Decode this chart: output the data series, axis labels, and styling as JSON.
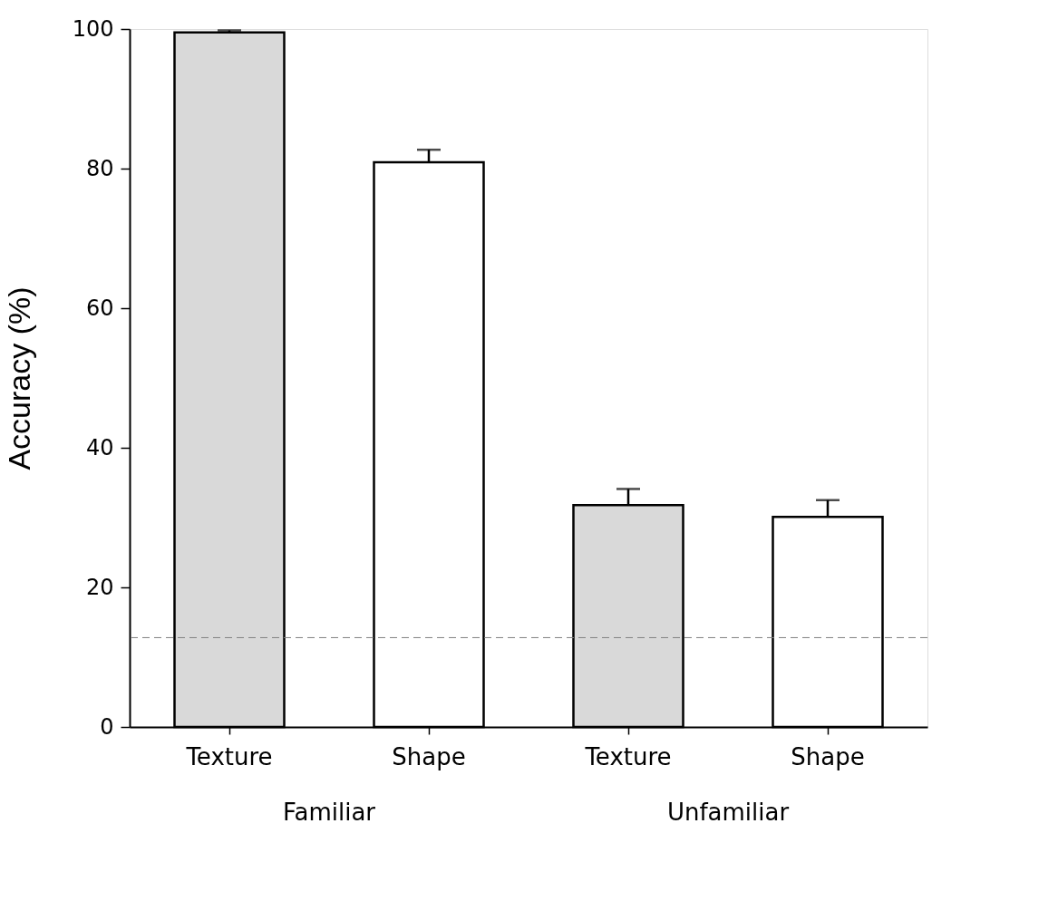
{
  "chart_data": {
    "type": "bar",
    "ylabel": "Accuracy (%)",
    "categories": [
      "Texture",
      "Shape",
      "Texture",
      "Shape"
    ],
    "values": [
      99.5,
      80.9,
      31.8,
      30.1
    ],
    "colors": [
      "#d9d9d9",
      "#ffffff",
      "#d9d9d9",
      "#ffffff"
    ],
    "errors": [
      [
        99.5,
        99.8
      ],
      [
        80.9,
        82.7
      ],
      [
        31.8,
        34.1
      ],
      [
        30.1,
        32.5
      ]
    ],
    "ylim": [
      0,
      100
    ],
    "yticks": [
      0,
      20,
      40,
      60,
      80,
      100
    ],
    "ref_lines": [
      {
        "axis": "y",
        "value": 12.8,
        "color": "#808080",
        "line_style": "dashed"
      }
    ],
    "annotations": [
      "Familiar",
      "Unfamiliar"
    ],
    "grid": false
  }
}
